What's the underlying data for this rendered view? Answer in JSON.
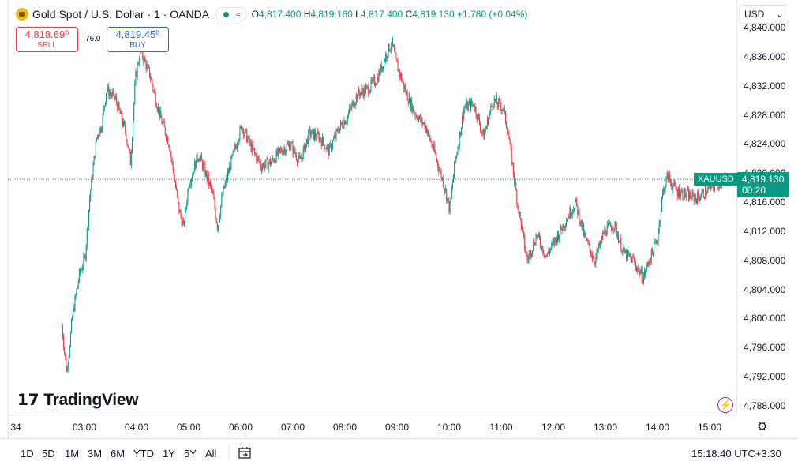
{
  "header": {
    "title": "Gold Spot / U.S. Dollar · 1 · OANDA",
    "open_label": "O",
    "open": "4,817.400",
    "high_label": "H",
    "high": "4,819.160",
    "low_label": "L",
    "low": "4,817.400",
    "close_label": "C",
    "close": "4,819.130",
    "change": "+1.780 (+0.04%)",
    "colors": {
      "up": "#089981",
      "down": "#f23645",
      "accent": "#2962ff"
    }
  },
  "trade": {
    "sell_price": "4,818.69⁰",
    "sell_label": "SELL",
    "spread": "76.0",
    "buy_price": "4,819.45⁰",
    "buy_label": "BUY"
  },
  "currency_select": "USD",
  "price_tag": {
    "symbol": "XAUUSD",
    "price": "4,819.130",
    "countdown": "00:20"
  },
  "logo_text": "TradingView",
  "range_buttons": [
    "1D",
    "5D",
    "1M",
    "3M",
    "6M",
    "YTD",
    "1Y",
    "5Y",
    "All"
  ],
  "clock": "15:18:40 UTC+3:30",
  "chart_data": {
    "type": "candlestick",
    "symbol": "XAUUSD",
    "interval": "1 minute",
    "y_ticks": [
      "4,840.000",
      "4,836.000",
      "4,832.000",
      "4,828.000",
      "4,824.000",
      "4,820.000",
      "4,816.000",
      "4,812.000",
      "4,808.000",
      "4,804.000",
      "4,800.000",
      "4,796.000",
      "4,792.000",
      "4,788.000"
    ],
    "ylim": [
      4787,
      4839
    ],
    "x_ticks": [
      ":34",
      "03:00",
      "04:00",
      "05:00",
      "06:00",
      "07:00",
      "08:00",
      "09:00",
      "10:00",
      "11:00",
      "12:00",
      "13:00",
      "14:00",
      "15:00"
    ],
    "xlim": [
      "02:34",
      "15:20"
    ],
    "last_price": 4819.13,
    "price_path": [
      {
        "t": "02:34",
        "p": 4799.0
      },
      {
        "t": "02:39",
        "p": 4792.5
      },
      {
        "t": "02:45",
        "p": 4800.5
      },
      {
        "t": "02:52",
        "p": 4806.0
      },
      {
        "t": "02:58",
        "p": 4808.5
      },
      {
        "t": "03:03",
        "p": 4817.0
      },
      {
        "t": "03:10",
        "p": 4825.0
      },
      {
        "t": "03:15",
        "p": 4826.5
      },
      {
        "t": "03:20",
        "p": 4831.5
      },
      {
        "t": "03:30",
        "p": 4830.0
      },
      {
        "t": "03:40",
        "p": 4825.5
      },
      {
        "t": "03:45",
        "p": 4821.5
      },
      {
        "t": "03:50",
        "p": 4833.0
      },
      {
        "t": "03:55",
        "p": 4837.0
      },
      {
        "t": "04:05",
        "p": 4833.5
      },
      {
        "t": "04:15",
        "p": 4828.0
      },
      {
        "t": "04:25",
        "p": 4824.0
      },
      {
        "t": "04:35",
        "p": 4815.0
      },
      {
        "t": "04:40",
        "p": 4812.5
      },
      {
        "t": "04:45",
        "p": 4818.5
      },
      {
        "t": "04:55",
        "p": 4822.5
      },
      {
        "t": "05:00",
        "p": 4821.0
      },
      {
        "t": "05:10",
        "p": 4817.0
      },
      {
        "t": "05:15",
        "p": 4812.5
      },
      {
        "t": "05:20",
        "p": 4817.0
      },
      {
        "t": "05:30",
        "p": 4822.0
      },
      {
        "t": "05:40",
        "p": 4826.5
      },
      {
        "t": "05:50",
        "p": 4823.5
      },
      {
        "t": "06:00",
        "p": 4821.0
      },
      {
        "t": "06:10",
        "p": 4821.5
      },
      {
        "t": "06:20",
        "p": 4823.0
      },
      {
        "t": "06:30",
        "p": 4824.0
      },
      {
        "t": "06:40",
        "p": 4821.5
      },
      {
        "t": "06:50",
        "p": 4825.5
      },
      {
        "t": "07:00",
        "p": 4825.0
      },
      {
        "t": "07:10",
        "p": 4823.0
      },
      {
        "t": "07:20",
        "p": 4826.0
      },
      {
        "t": "07:30",
        "p": 4828.0
      },
      {
        "t": "07:40",
        "p": 4831.0
      },
      {
        "t": "07:50",
        "p": 4831.5
      },
      {
        "t": "08:00",
        "p": 4833.0
      },
      {
        "t": "08:10",
        "p": 4836.5
      },
      {
        "t": "08:15",
        "p": 4838.0
      },
      {
        "t": "08:20",
        "p": 4835.0
      },
      {
        "t": "08:30",
        "p": 4831.0
      },
      {
        "t": "08:40",
        "p": 4828.0
      },
      {
        "t": "08:50",
        "p": 4826.5
      },
      {
        "t": "09:00",
        "p": 4822.5
      },
      {
        "t": "09:10",
        "p": 4818.0
      },
      {
        "t": "09:15",
        "p": 4815.0
      },
      {
        "t": "09:20",
        "p": 4821.0
      },
      {
        "t": "09:30",
        "p": 4829.0
      },
      {
        "t": "09:40",
        "p": 4829.5
      },
      {
        "t": "09:50",
        "p": 4825.0
      },
      {
        "t": "10:00",
        "p": 4830.0
      },
      {
        "t": "10:10",
        "p": 4829.0
      },
      {
        "t": "10:15",
        "p": 4826.0
      },
      {
        "t": "10:25",
        "p": 4816.0
      },
      {
        "t": "10:35",
        "p": 4808.0
      },
      {
        "t": "10:45",
        "p": 4811.5
      },
      {
        "t": "10:55",
        "p": 4808.5
      },
      {
        "t": "11:05",
        "p": 4811.0
      },
      {
        "t": "11:15",
        "p": 4813.5
      },
      {
        "t": "11:25",
        "p": 4816.0
      },
      {
        "t": "11:35",
        "p": 4811.0
      },
      {
        "t": "11:45",
        "p": 4808.0
      },
      {
        "t": "11:55",
        "p": 4812.0
      },
      {
        "t": "12:05",
        "p": 4813.0
      },
      {
        "t": "12:15",
        "p": 4809.0
      },
      {
        "t": "12:25",
        "p": 4808.0
      },
      {
        "t": "12:35",
        "p": 4805.5
      },
      {
        "t": "12:40",
        "p": 4807.5
      },
      {
        "t": "12:50",
        "p": 4811.0
      },
      {
        "t": "12:55",
        "p": 4817.0
      },
      {
        "t": "13:00",
        "p": 4819.5
      },
      {
        "t": "13:10",
        "p": 4817.5
      },
      {
        "t": "13:20",
        "p": 4817.0
      },
      {
        "t": "13:30",
        "p": 4816.5
      },
      {
        "t": "13:45",
        "p": 4818.0
      },
      {
        "t": "14:00",
        "p": 4819.13
      }
    ]
  }
}
